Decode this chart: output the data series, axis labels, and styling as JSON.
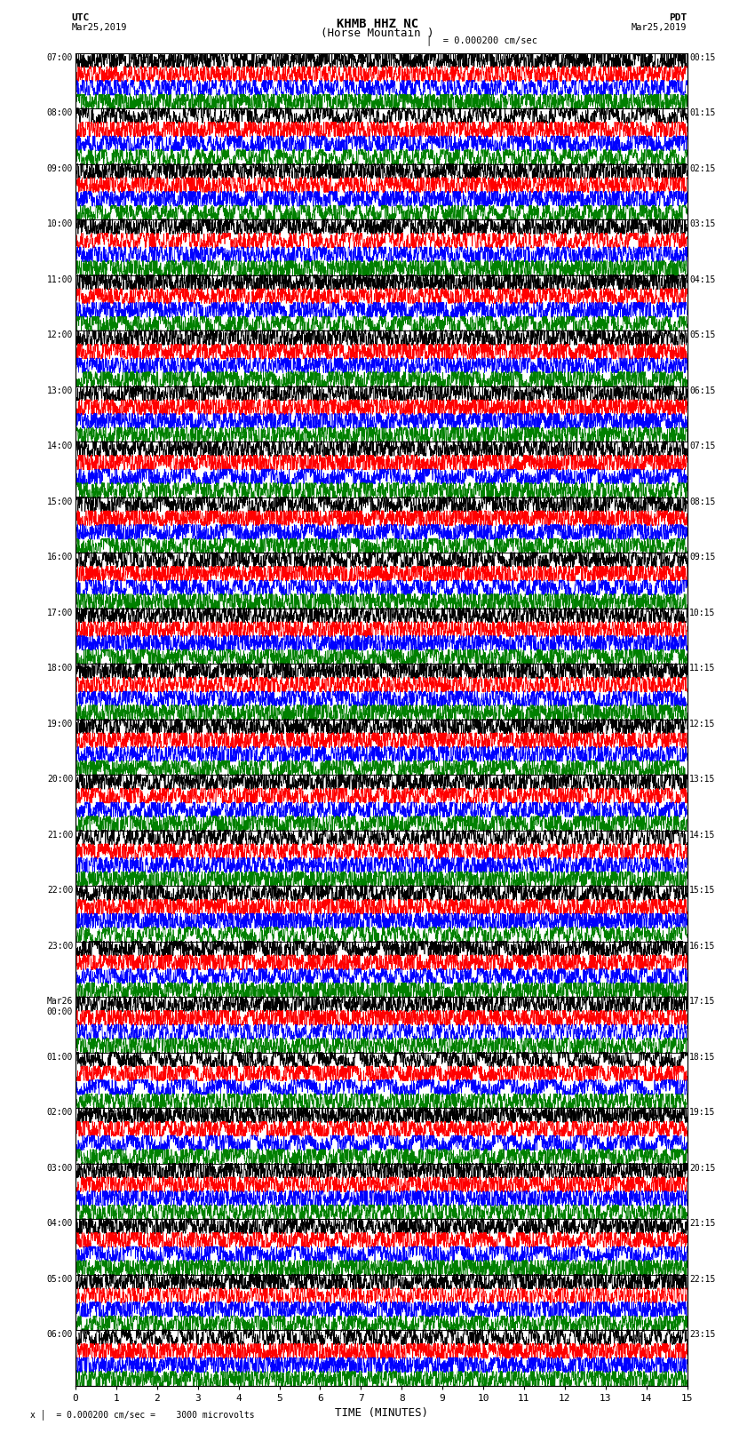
{
  "title_line1": "KHMB HHZ NC",
  "title_line2": "(Horse Mountain )",
  "scale_text": "= 0.000200 cm/sec",
  "left_date": "Mar25,2019",
  "right_date": "Mar25,2019",
  "utc_label": "UTC",
  "pdt_label": "PDT",
  "xlabel": "TIME (MINUTES)",
  "bottom_note": "= 0.000200 cm/sec =    3000 microvolts",
  "bottom_note_prefix": "x",
  "bg_color": "#ffffff",
  "trace_colors": [
    "#000000",
    "#ff0000",
    "#0000ff",
    "#008000"
  ],
  "xmin": 0,
  "xmax": 15,
  "fig_width": 8.5,
  "fig_height": 16.13,
  "dpi": 100,
  "n_traces_per_group": 4,
  "left_utc_times": [
    "07:00",
    "08:00",
    "09:00",
    "10:00",
    "11:00",
    "12:00",
    "13:00",
    "14:00",
    "15:00",
    "16:00",
    "17:00",
    "18:00",
    "19:00",
    "20:00",
    "21:00",
    "22:00",
    "23:00",
    "Mar26\n00:00",
    "01:00",
    "02:00",
    "03:00",
    "04:00",
    "05:00",
    "06:00"
  ],
  "right_pdt_times": [
    "00:15",
    "01:15",
    "02:15",
    "03:15",
    "04:15",
    "05:15",
    "06:15",
    "07:15",
    "08:15",
    "09:15",
    "10:15",
    "11:15",
    "12:15",
    "13:15",
    "14:15",
    "15:15",
    "16:15",
    "17:15",
    "18:15",
    "19:15",
    "20:15",
    "21:15",
    "22:15",
    "23:15"
  ],
  "seed": 42
}
